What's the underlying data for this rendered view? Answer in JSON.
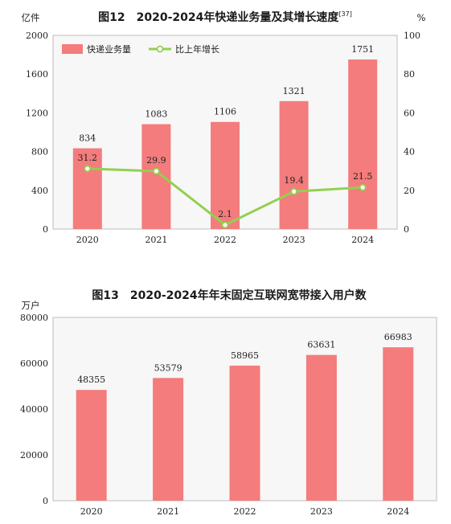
{
  "chart_data": [
    {
      "type": "bar",
      "title": "图12　2020-2024年快递业务量及其增长速度",
      "title_sup": "[37]",
      "ylabel": "亿件",
      "y2label": "%",
      "ylim": [
        0,
        2000
      ],
      "yticks": [
        0,
        400,
        800,
        1200,
        1600,
        2000
      ],
      "y2lim": [
        0,
        100
      ],
      "y2ticks": [
        0,
        20,
        40,
        60,
        80,
        100
      ],
      "categories": [
        "2020",
        "2021",
        "2022",
        "2023",
        "2024"
      ],
      "series": [
        {
          "name": "快递业务量",
          "type": "bar",
          "axis": "left",
          "values": [
            834,
            1083,
            1106,
            1321,
            1751
          ],
          "color": "#f47c7c"
        },
        {
          "name": "比上年增长",
          "type": "line",
          "axis": "right",
          "values": [
            31.2,
            29.9,
            2.1,
            19.4,
            21.5
          ],
          "value_labels": [
            "31.2",
            "29.9",
            "2.1",
            "19.4",
            "21.5"
          ],
          "color": "#92d050"
        }
      ],
      "legend": "top-left",
      "grid": false
    },
    {
      "type": "bar",
      "title": "图13　2020-2024年年末固定互联网宽带接入用户数",
      "ylabel": "万户",
      "ylim": [
        0,
        80000
      ],
      "yticks": [
        0,
        20000,
        40000,
        60000,
        80000
      ],
      "categories": [
        "2020",
        "2021",
        "2022",
        "2023",
        "2024"
      ],
      "series": [
        {
          "type": "bar",
          "values": [
            48355,
            53579,
            58965,
            63631,
            66983
          ],
          "color": "#f47c7c"
        }
      ],
      "grid": false
    }
  ]
}
